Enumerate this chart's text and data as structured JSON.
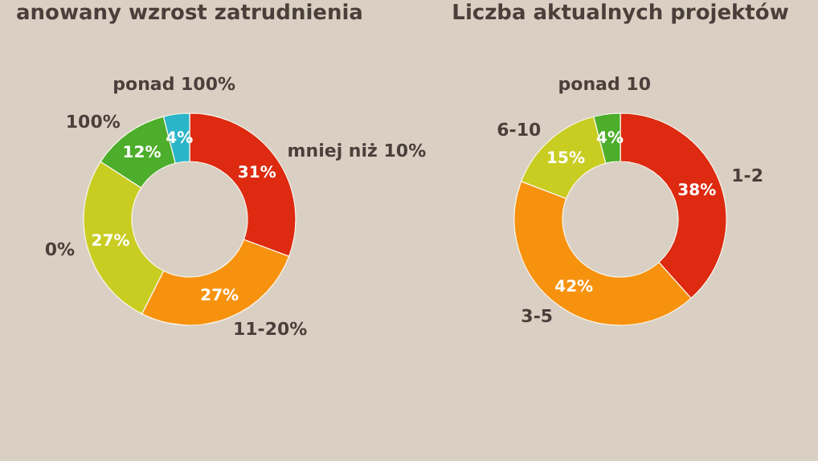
{
  "chart_data": [
    {
      "type": "donut",
      "title": "anowany wzrost zatrudnienia",
      "categories": [
        "mniej niż 10%",
        "11-20%",
        "0%",
        "100%",
        "ponad 100%"
      ],
      "values": [
        31,
        27,
        27,
        12,
        4
      ],
      "colors": [
        "#dd2a10",
        "#f7920f",
        "#c9cd22",
        "#4cae2a",
        "#2bb5c8"
      ],
      "value_labels": [
        "31%",
        "27%",
        "27%",
        "12%",
        "4%"
      ]
    },
    {
      "type": "donut",
      "title": "Liczba aktualnych projektów",
      "categories": [
        "1-2",
        "3-5",
        "6-10",
        "ponad 10"
      ],
      "values": [
        38,
        42,
        15,
        4
      ],
      "colors": [
        "#dd2a10",
        "#f7920f",
        "#c5cc20",
        "#5cb83a"
      ],
      "value_labels": [
        "38%",
        "42%",
        "15%",
        "4%"
      ]
    }
  ]
}
